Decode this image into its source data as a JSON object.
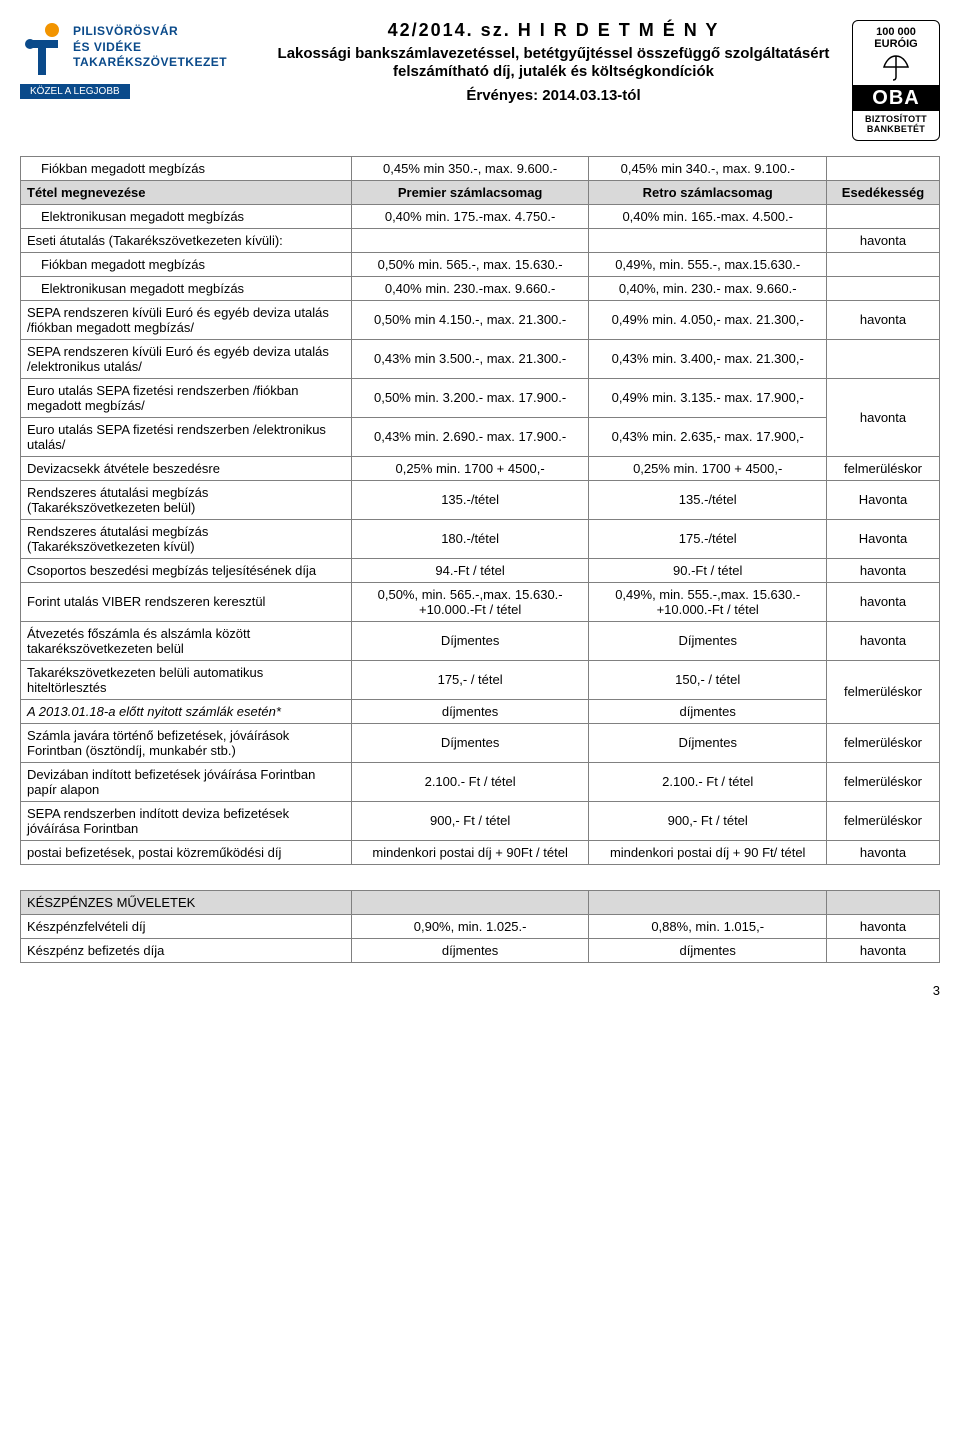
{
  "logo": {
    "line1": "PILISVÖRÖSVÁR",
    "line2": "ÉS VIDÉKE",
    "line3": "TAKARÉKSZÖVETKEZET",
    "tagline": "KÖZEL A LEGJOBB"
  },
  "title": {
    "number": "42/2014. sz. H I R D E T M É N Y",
    "sub": "Lakossági bankszámlavezetéssel, betétgyűjtéssel összefüggő szolgáltatásért felszámítható díj, jutalék és költségkondíciók",
    "valid": "Érvényes: 2014.03.13-tól"
  },
  "oba": {
    "euro": "100 000 EURÓIG",
    "brand": "OBA",
    "b1": "BIZTOSÍTOTT",
    "b2": "BANKBETÉT"
  },
  "hdr": {
    "c1": "Tétel megnevezése",
    "c2": "Premier számlacsomag",
    "c3": "Retro számlacsomag",
    "c4": "Esedékesség"
  },
  "rows": [
    {
      "c1": "Fiókban megadott megbízás",
      "c2": "0,45% min 350.-, max. 9.600.-",
      "c3": "0,45% min 340.-, max. 9.100.-",
      "indent": true
    },
    {
      "c1": "Elektronikusan megadott megbízás",
      "c2": "0,40% min. 175.-max. 4.750.-",
      "c3": "0,40% min. 165.-max. 4.500.-",
      "indent": true
    },
    {
      "c1": "Eseti átutalás (Takarékszövetkezeten kívüli):",
      "c2": "",
      "c3": "",
      "c4": "havonta"
    },
    {
      "c1": "Fiókban megadott megbízás",
      "c2": "0,50% min. 565.-, max. 15.630.-",
      "c3": "0,49%, min. 555.-, max.15.630.-",
      "indent": true
    },
    {
      "c1": "Elektronikusan megadott megbízás",
      "c2": "0,40% min. 230.-max. 9.660.-",
      "c3": "0,40%, min. 230.- max. 9.660.-",
      "indent": true
    },
    {
      "c1": "SEPA rendszeren kívüli Euró és egyéb deviza utalás /fiókban megadott megbízás/",
      "c2": "0,50% min 4.150.-, max. 21.300.-",
      "c3": "0,49% min. 4.050,- max. 21.300,-",
      "c4": "havonta"
    },
    {
      "c1": "SEPA rendszeren kívüli Euró és egyéb deviza utalás /elektronikus utalás/",
      "c2": "0,43% min 3.500.-, max. 21.300.-",
      "c3": "0,43% min. 3.400,- max. 21.300,-"
    },
    {
      "c1": "Euro utalás SEPA fizetési rendszerben /fiókban megadott megbízás/",
      "c2": "0,50% min. 3.200.-  max. 17.900.-",
      "c3": "0,49% min. 3.135.- max. 17.900,-",
      "c4": "havonta",
      "c4_rowspan": 2
    },
    {
      "c1": "Euro utalás SEPA fizetési rendszerben /elektronikus utalás/",
      "c2": "0,43% min. 2.690.-  max. 17.900.-",
      "c3": "0,43% min. 2.635,- max. 17.900,-",
      "c4_skip": true
    },
    {
      "c1": "Devizacsekk átvétele beszedésre",
      "c2": "0,25% min. 1700 + 4500,-",
      "c3": "0,25% min. 1700 + 4500,-",
      "c4": "felmerüléskor"
    },
    {
      "c1": "Rendszeres átutalási megbízás (Takarékszövetkezeten belül)",
      "c2": "135.-/tétel",
      "c3": "135.-/tétel",
      "c4": "Havonta"
    },
    {
      "c1": "Rendszeres átutalási megbízás (Takarékszövetkezeten kívül)",
      "c2": "180.-/tétel",
      "c3": "175.-/tétel",
      "c4": "Havonta"
    },
    {
      "c1": "Csoportos beszedési megbízás teljesítésének  díja",
      "c2": "94.-Ft / tétel",
      "c3": "90.-Ft / tétel",
      "c4": "havonta"
    },
    {
      "c1": "Forint utalás VIBER rendszeren keresztül",
      "c2": "0,50%, min. 565.-,max. 15.630.- +10.000.-Ft / tétel",
      "c3": "0,49%, min. 555.-,max. 15.630.- +10.000.-Ft / tétel",
      "c4": "havonta"
    },
    {
      "c1": "Átvezetés főszámla és alszámla között takarékszövetkezeten belül",
      "c2": "Díjmentes",
      "c3": "Díjmentes",
      "c4": "havonta"
    },
    {
      "c1": "Takarékszövetkezeten belüli automatikus hiteltörlesztés",
      "c2": "175,- / tétel",
      "c3": "150,- / tétel",
      "c4": "felmerüléskor",
      "c4_rowspan": 2
    },
    {
      "c1": "A 2013.01.18-a előtt nyitott számlák esetén*",
      "c2": "díjmentes",
      "c3": "díjmentes",
      "c1_italic": true,
      "c4_skip": true
    },
    {
      "c1": "Számla javára történő befizetések, jóváírások Forintban (ösztöndíj, munkabér stb.)",
      "c2": "Díjmentes",
      "c3": "Díjmentes",
      "c4": "felmerüléskor"
    },
    {
      "c1": "Devizában indított befizetések jóváírása Forintban papír alapon",
      "c2": "2.100.- Ft / tétel",
      "c3": "2.100.- Ft / tétel",
      "c4": "felmerüléskor"
    },
    {
      "c1": "SEPA rendszerben indított deviza befizetések jóváírása Forintban",
      "c2": "900,- Ft / tétel",
      "c3": "900,- Ft / tétel",
      "c4": "felmerüléskor"
    },
    {
      "c1": "postai befizetések, postai közreműködési díj",
      "c2": "mindenkori postai díj + 90Ft / tétel",
      "c3": "mindenkori postai díj + 90 Ft/ tétel",
      "c4": "havonta"
    }
  ],
  "cash": {
    "head": "KÉSZPÉNZES MŰVELETEK",
    "r1": {
      "c1": "Készpénzfelvételi díj",
      "c2": "0,90%, min.  1.025.-",
      "c3": "0,88%, min. 1.015,-",
      "c4": "havonta"
    },
    "r2": {
      "c1": "Készpénz befizetés díja",
      "c2": "díjmentes",
      "c3": "díjmentes",
      "c4": "havonta"
    }
  },
  "pagenum": "3"
}
